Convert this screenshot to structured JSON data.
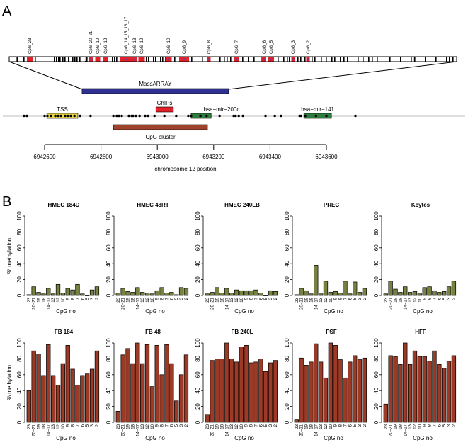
{
  "panel_a": {
    "letter": "A",
    "cpg_labels": [
      "CpG_23",
      "CpG_20_21",
      "CpG_19",
      "CpG_18",
      "CpG_14_15_16_17",
      "CpG_13",
      "CpG_12",
      "CpG_10",
      "CpG_9",
      "CpG_8",
      "CpG_7",
      "CpG_6",
      "CpG_5",
      "CpG_3",
      "CpG_2"
    ],
    "massarray_label": "MassARRAY",
    "features": {
      "tss": {
        "label": "TSS",
        "start": 6942608,
        "end": 6942718
      },
      "chips": {
        "label": "ChIPs",
        "start": 6942995,
        "end": 6943057
      },
      "mir200c": {
        "label": "hsa−mir−200c",
        "start": 6943120,
        "end": 6943191
      },
      "mir141": {
        "label": "hsa−mir−141",
        "start": 6943520,
        "end": 6943618
      },
      "cpg_cluster": {
        "label": "CpG cluster",
        "start": 6942844,
        "end": 6943178
      },
      "massarray": {
        "start": 6942733,
        "end": 6943253
      }
    },
    "cpg_sites": [
      6942527,
      6942537,
      6942600,
      6942610,
      6942623,
      6942638,
      6942648,
      6942658,
      6942673,
      6942683,
      6942693,
      6942706,
      6942726,
      6942763,
      6942844,
      6942856,
      6942864,
      6942874,
      6942899,
      6942909,
      6942914,
      6942924,
      6942937,
      6942957,
      6942967,
      6942990,
      6943025,
      6943067,
      6943110,
      6943120,
      6943153,
      6943175,
      6943221,
      6943271,
      6943278,
      6943289,
      6943304,
      6943384,
      6943417,
      6943439,
      6943505,
      6943510,
      6943525,
      6943563,
      6943600,
      6943703
    ],
    "axis_ticks": [
      "6942600",
      "6942800",
      "6943000",
      "6943200",
      "6943400",
      "6943600"
    ],
    "axis_label": "chromosome 12 position"
  },
  "colors": {
    "normal_bar": "#76823f",
    "fibroblast_bar": "#9b3a26",
    "massarray": "#2e3192",
    "tss": "#e8d44d",
    "mir": "#2f7d3e",
    "chips": "#e4202a",
    "cpg_cluster": "#a0432c",
    "cpg_fragment": "#e4202a"
  },
  "chart_data": {
    "panel_letter": "B",
    "type": "bar",
    "ylabel": "% methylation",
    "xlabel": "CpG no",
    "ylim": [
      0,
      100
    ],
    "yticks": [
      "0",
      "20",
      "40",
      "60",
      "80",
      "100"
    ],
    "categories": [
      "23",
      "20−21",
      "19",
      "18",
      "14−17",
      "13",
      "12",
      "10",
      "9",
      "8",
      "7",
      "6",
      "5",
      "3",
      "2"
    ],
    "series": [
      {
        "name": "HMEC 184D",
        "values": [
          1,
          11,
          4,
          2,
          9,
          2,
          14,
          3,
          9,
          7,
          14,
          2,
          0,
          7,
          11
        ]
      },
      {
        "name": "HMEC 48RT",
        "values": [
          3,
          9,
          5,
          4,
          10,
          4,
          3,
          2,
          6,
          10,
          3,
          4,
          1,
          10,
          9
        ]
      },
      {
        "name": "HMEC 240LB",
        "values": [
          2,
          4,
          10,
          3,
          9,
          3,
          7,
          6,
          6,
          6,
          7,
          3,
          0,
          6,
          5
        ]
      },
      {
        "name": "PREC",
        "values": [
          1,
          9,
          6,
          2,
          38,
          2,
          18,
          4,
          5,
          3,
          18,
          2,
          17,
          4,
          9
        ]
      },
      {
        "name": "Kcytes",
        "values": [
          2,
          18,
          8,
          4,
          11,
          4,
          5,
          2,
          10,
          11,
          6,
          4,
          5,
          11,
          18
        ]
      },
      {
        "name": "FB 184",
        "values": [
          40,
          90,
          86,
          59,
          98,
          59,
          47,
          74,
          97,
          67,
          47,
          59,
          61,
          67,
          90
        ]
      },
      {
        "name": "FB 48",
        "values": [
          14,
          85,
          93,
          74,
          100,
          74,
          98,
          45,
          97,
          60,
          98,
          74,
          27,
          60,
          85
        ]
      },
      {
        "name": "FB 240L",
        "values": [
          10,
          78,
          80,
          80,
          100,
          80,
          76,
          95,
          97,
          75,
          76,
          80,
          64,
          75,
          78
        ]
      },
      {
        "name": "PSF",
        "values": [
          3,
          81,
          72,
          76,
          99,
          76,
          56,
          100,
          97,
          79,
          56,
          76,
          84,
          79,
          81
        ]
      },
      {
        "name": "HFF",
        "values": [
          23,
          84,
          83,
          73,
          100,
          73,
          90,
          83,
          83,
          77,
          90,
          73,
          68,
          77,
          84
        ]
      }
    ]
  }
}
